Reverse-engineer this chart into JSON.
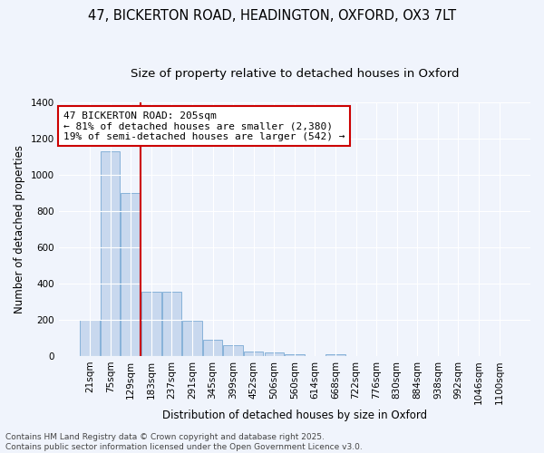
{
  "title1": "47, BICKERTON ROAD, HEADINGTON, OXFORD, OX3 7LT",
  "title2": "Size of property relative to detached houses in Oxford",
  "xlabel": "Distribution of detached houses by size in Oxford",
  "ylabel": "Number of detached properties",
  "categories": [
    "21sqm",
    "75sqm",
    "129sqm",
    "183sqm",
    "237sqm",
    "291sqm",
    "345sqm",
    "399sqm",
    "452sqm",
    "506sqm",
    "560sqm",
    "614sqm",
    "668sqm",
    "722sqm",
    "776sqm",
    "830sqm",
    "884sqm",
    "938sqm",
    "992sqm",
    "1046sqm",
    "1100sqm"
  ],
  "values": [
    200,
    1130,
    900,
    355,
    355,
    195,
    90,
    60,
    25,
    20,
    10,
    0,
    10,
    0,
    0,
    0,
    0,
    0,
    0,
    0,
    0
  ],
  "bar_color": "#c8d8ee",
  "bar_edge_color": "#7aaad4",
  "background_color": "#f0f4fc",
  "grid_color": "#ffffff",
  "vline_color": "#cc0000",
  "vline_x_index": 2.5,
  "annotation_text": "47 BICKERTON ROAD: 205sqm\n← 81% of detached houses are smaller (2,380)\n19% of semi-detached houses are larger (542) →",
  "annotation_box_facecolor": "#ffffff",
  "annotation_box_edgecolor": "#cc0000",
  "footnote": "Contains HM Land Registry data © Crown copyright and database right 2025.\nContains public sector information licensed under the Open Government Licence v3.0.",
  "ylim": [
    0,
    1400
  ],
  "yticks": [
    0,
    200,
    400,
    600,
    800,
    1000,
    1200,
    1400
  ],
  "title1_fontsize": 10.5,
  "title2_fontsize": 9.5,
  "axis_label_fontsize": 8.5,
  "tick_fontsize": 7.5,
  "annotation_fontsize": 8,
  "footnote_fontsize": 6.5
}
